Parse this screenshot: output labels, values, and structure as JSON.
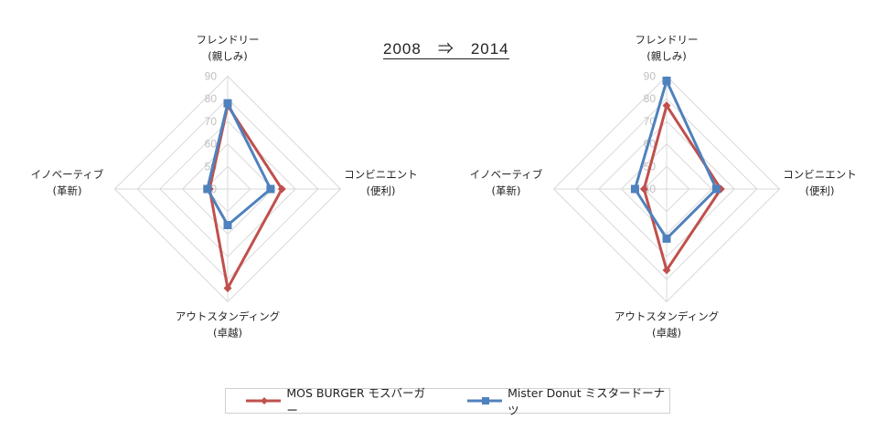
{
  "title": "2008　⇒　2014",
  "chart_data": [
    {
      "type": "radar",
      "title": "2008",
      "axes": [
        {
          "label1": "フレンドリー",
          "label2": "(親しみ)"
        },
        {
          "label1": "コンビニエント",
          "label2": "(便利)"
        },
        {
          "label1": "アウトスタンディング",
          "label2": "(卓越)"
        },
        {
          "label1": "イノベーティブ",
          "label2": "(革新)"
        }
      ],
      "range": [
        40,
        90
      ],
      "ticks": [
        "40",
        "50",
        "60",
        "70",
        "80",
        "90"
      ],
      "series": [
        {
          "name": "MOS BURGER モスバーガー",
          "color": "#c0504d",
          "marker": "diamond",
          "values": [
            77,
            64,
            84,
            48
          ]
        },
        {
          "name": "Mister Donut ミスタードーナツ",
          "color": "#4f81bd",
          "marker": "square",
          "values": [
            78,
            59,
            56,
            49
          ]
        }
      ]
    },
    {
      "type": "radar",
      "title": "2014",
      "axes": [
        {
          "label1": "フレンドリー",
          "label2": "(親しみ)"
        },
        {
          "label1": "コンビニエント",
          "label2": "(便利)"
        },
        {
          "label1": "アウトスタンディング",
          "label2": "(卓越)"
        },
        {
          "label1": "イノベーティブ",
          "label2": "(革新)"
        }
      ],
      "range": [
        40,
        90
      ],
      "ticks": [
        "40",
        "50",
        "60",
        "70",
        "80",
        "90"
      ],
      "series": [
        {
          "name": "MOS BURGER モスバーガー",
          "color": "#c0504d",
          "marker": "diamond",
          "values": [
            77,
            64,
            76,
            50
          ]
        },
        {
          "name": "Mister Donut ミスタードーナツ",
          "color": "#4f81bd",
          "marker": "square",
          "values": [
            88,
            62,
            62,
            54
          ]
        }
      ]
    }
  ],
  "legend": [
    {
      "name": "MOS BURGER モスバーガー",
      "color": "#c0504d"
    },
    {
      "name": "Mister Donut ミスタードーナツ",
      "color": "#4f81bd"
    }
  ]
}
